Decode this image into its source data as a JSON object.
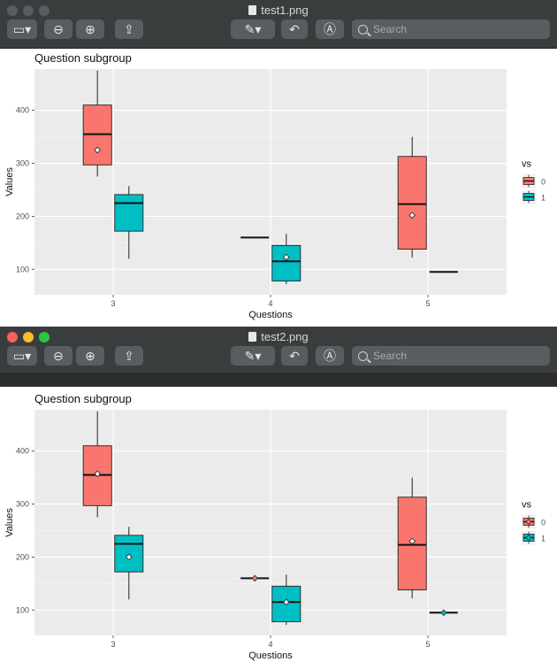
{
  "windows": [
    {
      "title": "test1.png",
      "search_placeholder": "Search",
      "traffic_light_colors": [
        "#5a5d5f",
        "#5a5d5f",
        "#5a5d5f"
      ],
      "chart_data": {
        "type": "box",
        "title": "Question subgroup",
        "xlabel": "Questions",
        "ylabel": "Values",
        "categories": [
          "3",
          "4",
          "5"
        ],
        "yticks": [
          100,
          200,
          300,
          400
        ],
        "ylim": [
          52,
          478
        ],
        "legend": {
          "title": "vs",
          "position": "right"
        },
        "series": [
          {
            "name": "0",
            "color": "#f8766d",
            "boxes": [
              {
                "category": "3",
                "min": 275,
                "q1": 297,
                "median": 355,
                "q3": 410,
                "max": 475,
                "mean": 325
              },
              {
                "category": "4",
                "min": 160,
                "q1": 160,
                "median": 160,
                "q3": 160,
                "max": 160
              },
              {
                "category": "5",
                "min": 122,
                "q1": 138,
                "median": 223,
                "q3": 313,
                "max": 350,
                "mean": 202
              }
            ]
          },
          {
            "name": "1",
            "color": "#00bfc4",
            "boxes": [
              {
                "category": "3",
                "min": 120,
                "q1": 172,
                "median": 225,
                "q3": 241,
                "max": 257
              },
              {
                "category": "4",
                "min": 72,
                "q1": 78,
                "median": 115,
                "q3": 145,
                "max": 167,
                "mean": 123
              },
              {
                "category": "5",
                "min": 95,
                "q1": 95,
                "median": 95,
                "q3": 95,
                "max": 95
              }
            ]
          }
        ]
      }
    },
    {
      "title": "test2.png",
      "search_placeholder": "Search",
      "traffic_light_colors": [
        "#fe5f57",
        "#febc2e",
        "#28c840"
      ],
      "chart_data": {
        "type": "box",
        "title": "Question subgroup",
        "xlabel": "Questions",
        "ylabel": "Values",
        "categories": [
          "3",
          "4",
          "5"
        ],
        "yticks": [
          100,
          200,
          300,
          400
        ],
        "ylim": [
          52,
          478
        ],
        "legend": {
          "title": "vs",
          "position": "right"
        },
        "series": [
          {
            "name": "0",
            "color": "#f8766d",
            "boxes": [
              {
                "category": "3",
                "min": 275,
                "q1": 297,
                "median": 355,
                "q3": 410,
                "max": 475,
                "mean": 357
              },
              {
                "category": "4",
                "min": 160,
                "q1": 160,
                "median": 160,
                "q3": 160,
                "max": 160,
                "mean": 160
              },
              {
                "category": "5",
                "min": 122,
                "q1": 138,
                "median": 223,
                "q3": 313,
                "max": 350,
                "mean": 230
              }
            ]
          },
          {
            "name": "1",
            "color": "#00bfc4",
            "boxes": [
              {
                "category": "3",
                "min": 120,
                "q1": 172,
                "median": 225,
                "q3": 241,
                "max": 257,
                "mean": 200
              },
              {
                "category": "4",
                "min": 72,
                "q1": 78,
                "median": 115,
                "q3": 145,
                "max": 167,
                "mean": 115
              },
              {
                "category": "5",
                "min": 95,
                "q1": 95,
                "median": 95,
                "q3": 95,
                "max": 95,
                "mean": 95
              }
            ]
          }
        ]
      }
    }
  ]
}
